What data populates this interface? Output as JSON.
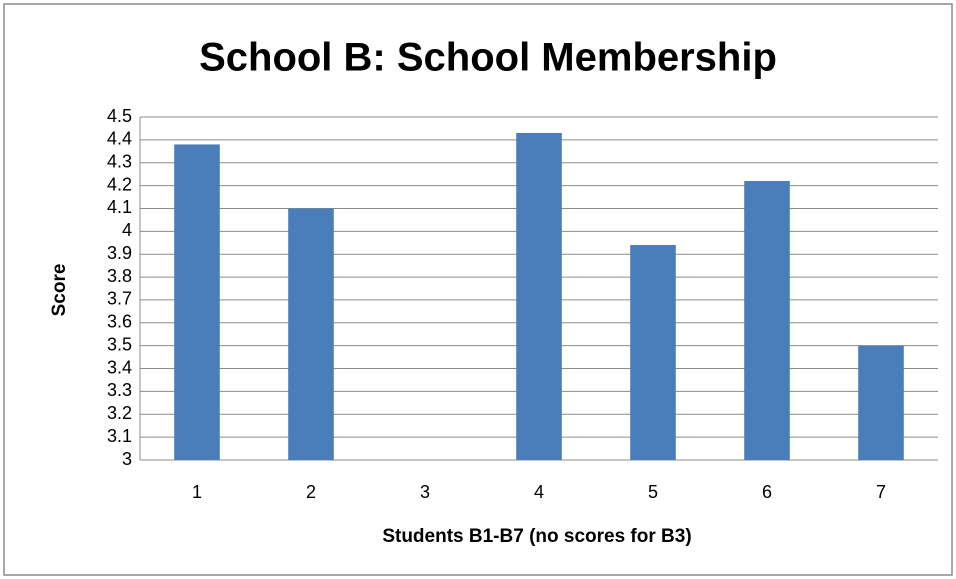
{
  "chart_data": {
    "type": "bar",
    "title": "School B: School Membership",
    "x_label": "Students B1-B7 (no scores for B3)",
    "y_label": "Score",
    "categories": [
      "1",
      "2",
      "3",
      "4",
      "5",
      "6",
      "7"
    ],
    "values": [
      4.38,
      4.1,
      null,
      4.43,
      3.94,
      4.22,
      3.5
    ],
    "color": "#4a7ebb",
    "ylim": [
      3,
      4.5
    ],
    "yticks": [
      3,
      3.1,
      3.2,
      3.3,
      3.4,
      3.5,
      3.6,
      3.7,
      3.8,
      3.9,
      4,
      4.1,
      4.2,
      4.3,
      4.4,
      4.5
    ],
    "grid": true
  }
}
